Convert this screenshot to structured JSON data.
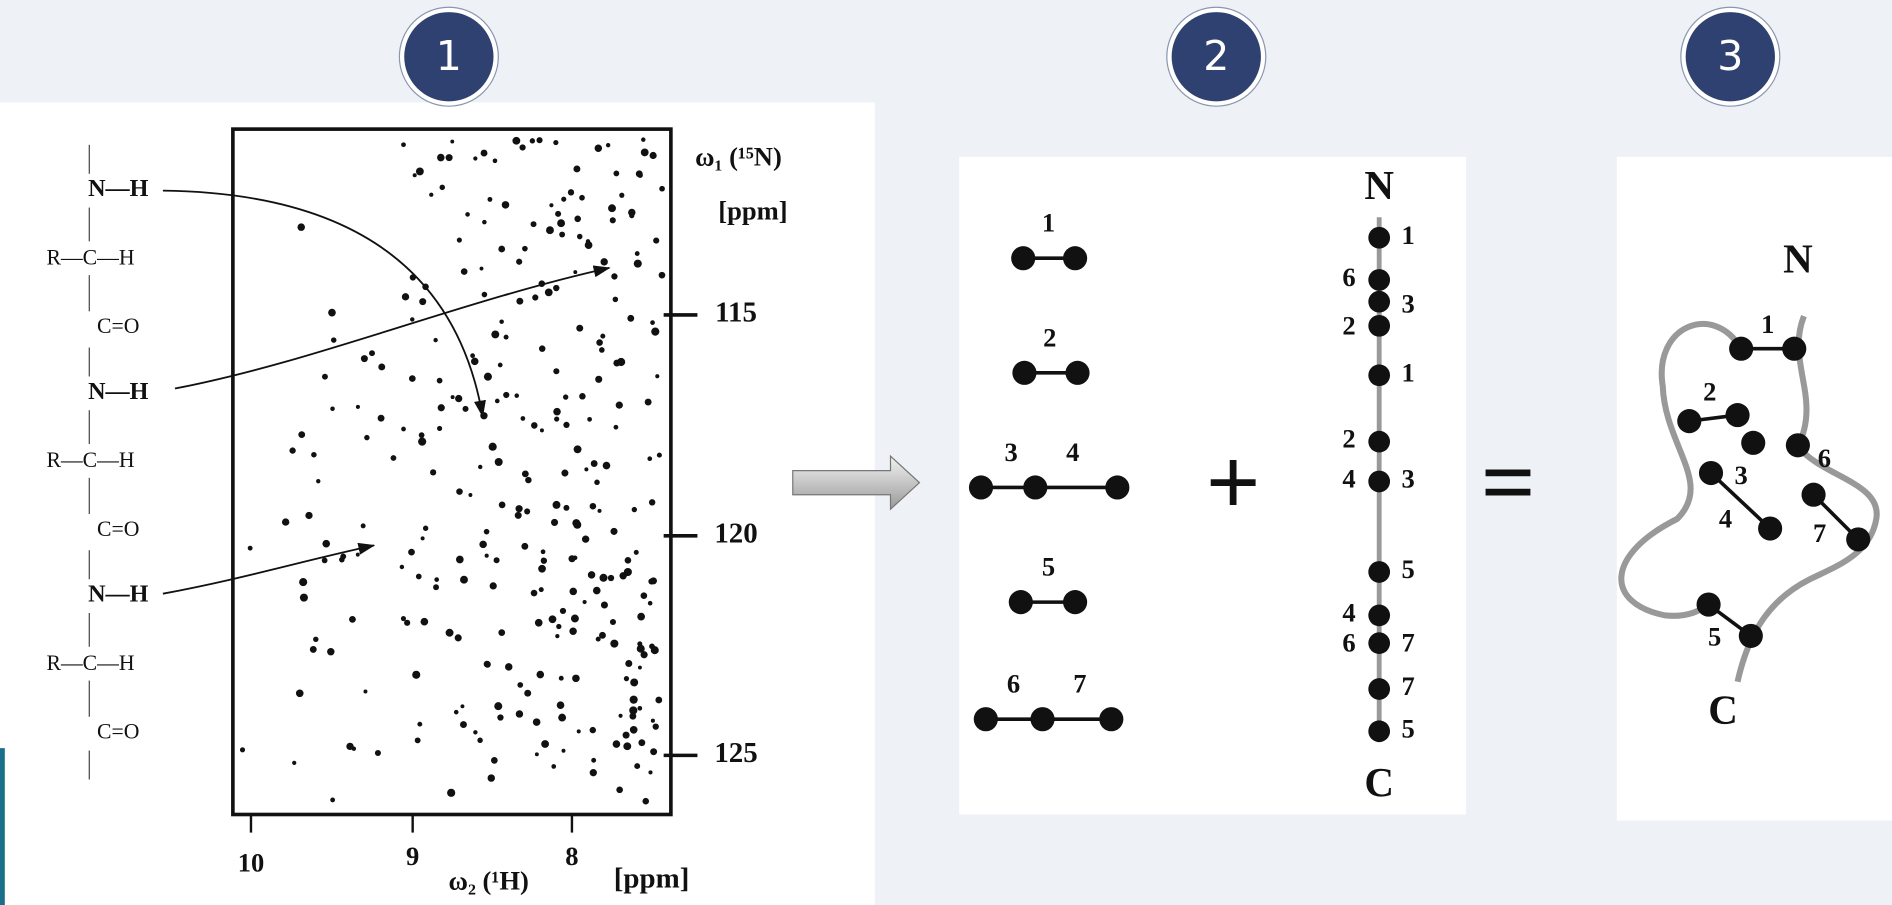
{
  "steps": [
    "1",
    "2",
    "3"
  ],
  "backbone": {
    "residues": [
      {
        "amide": "N—H",
        "alpha": "R—C—H",
        "carbonyl": "C=O"
      },
      {
        "amide": "N—H",
        "alpha": "R—C—H",
        "carbonyl": "C=O"
      },
      {
        "amide": "N—H",
        "alpha": "R—C—H",
        "carbonyl": "C=O"
      }
    ]
  },
  "spectrum": {
    "y_label": "ω₁ (¹⁵N)",
    "y_unit": "[ppm]",
    "y_ticks": [
      115,
      120,
      125
    ],
    "x_ticks": [
      10,
      9,
      8
    ],
    "x_label": "ω₂ (¹H)",
    "x_unit": "[ppm]"
  },
  "fragments": {
    "labels": [
      "1",
      "2",
      "3",
      "4",
      "5",
      "6",
      "7"
    ]
  },
  "operators": {
    "plus": "+",
    "equals": "="
  },
  "chain": {
    "start": "N",
    "end": "C",
    "right_labels": [
      "1",
      "3",
      "1",
      "3",
      "5",
      "7",
      "7",
      "5"
    ],
    "left_labels": [
      "6",
      "2",
      "2",
      "4",
      "4",
      "6"
    ]
  },
  "structure": {
    "start": "N",
    "end": "C",
    "labels": [
      "1",
      "2",
      "3",
      "4",
      "5",
      "6",
      "7"
    ]
  }
}
